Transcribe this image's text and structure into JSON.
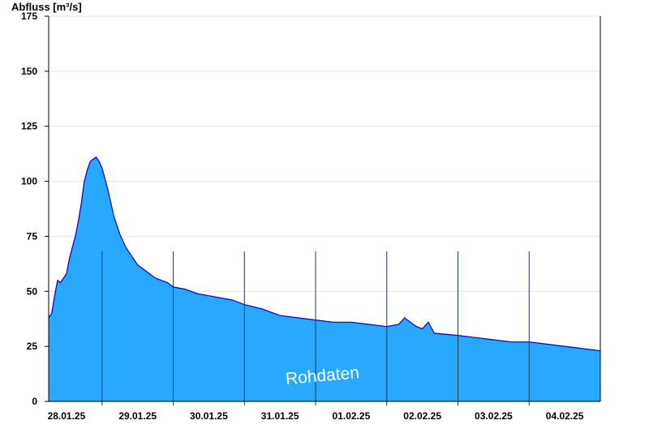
{
  "chart_data": {
    "type": "area",
    "ylabel": "Abfluss [m³/s]",
    "title": "",
    "xlabel": "",
    "ylim": [
      0,
      175
    ],
    "yticks": [
      0,
      25,
      50,
      75,
      100,
      125,
      150,
      175
    ],
    "x_range": [
      "2025-01-27T18:00",
      "2025-02-04T12:00"
    ],
    "xtick_labels": [
      "28.01.25",
      "29.01.25",
      "30.01.25",
      "31.01.25",
      "01.02.25",
      "02.02.25",
      "03.02.25",
      "04.02.25"
    ],
    "day_boundaries": [
      "2025-01-28T12:00",
      "2025-01-29T12:00",
      "2025-01-30T12:00",
      "2025-01-31T12:00",
      "2025-02-01T12:00",
      "2025-02-02T12:00",
      "2025-02-03T12:00"
    ],
    "grid": "horizontal",
    "watermark": "Rohdaten",
    "fill_color": "#29a8ff",
    "line_color": "#0000cc",
    "series": [
      {
        "values": [
          [
            "2025-01-27T18:00",
            38
          ],
          [
            "2025-01-27T19:00",
            40
          ],
          [
            "2025-01-27T20:00",
            48
          ],
          [
            "2025-01-27T21:00",
            55
          ],
          [
            "2025-01-27T22:00",
            54
          ],
          [
            "2025-01-27T23:00",
            56
          ],
          [
            "2025-01-28T00:00",
            58
          ],
          [
            "2025-01-28T01:00",
            65
          ],
          [
            "2025-01-28T02:00",
            70
          ],
          [
            "2025-01-28T03:00",
            75
          ],
          [
            "2025-01-28T04:00",
            82
          ],
          [
            "2025-01-28T05:00",
            90
          ],
          [
            "2025-01-28T06:00",
            100
          ],
          [
            "2025-01-28T07:00",
            105
          ],
          [
            "2025-01-28T08:00",
            109
          ],
          [
            "2025-01-28T09:00",
            110
          ],
          [
            "2025-01-28T10:00",
            111
          ],
          [
            "2025-01-28T11:00",
            109
          ],
          [
            "2025-01-28T12:00",
            106
          ],
          [
            "2025-01-28T13:00",
            101
          ],
          [
            "2025-01-28T14:00",
            96
          ],
          [
            "2025-01-28T15:00",
            90
          ],
          [
            "2025-01-28T16:00",
            84
          ],
          [
            "2025-01-28T17:00",
            80
          ],
          [
            "2025-01-28T18:00",
            76
          ],
          [
            "2025-01-28T20:00",
            70
          ],
          [
            "2025-01-28T22:00",
            66
          ],
          [
            "2025-01-29T00:00",
            62
          ],
          [
            "2025-01-29T02:00",
            60
          ],
          [
            "2025-01-29T04:00",
            58
          ],
          [
            "2025-01-29T06:00",
            56
          ],
          [
            "2025-01-29T08:00",
            55
          ],
          [
            "2025-01-29T10:00",
            54
          ],
          [
            "2025-01-29T12:00",
            52
          ],
          [
            "2025-01-29T16:00",
            51
          ],
          [
            "2025-01-29T20:00",
            49
          ],
          [
            "2025-01-30T00:00",
            48
          ],
          [
            "2025-01-30T04:00",
            47
          ],
          [
            "2025-01-30T08:00",
            46
          ],
          [
            "2025-01-30T12:00",
            44
          ],
          [
            "2025-01-30T18:00",
            42
          ],
          [
            "2025-01-31T00:00",
            39
          ],
          [
            "2025-01-31T06:00",
            38
          ],
          [
            "2025-01-31T12:00",
            37
          ],
          [
            "2025-01-31T18:00",
            36
          ],
          [
            "2025-02-01T00:00",
            36
          ],
          [
            "2025-02-01T06:00",
            35
          ],
          [
            "2025-02-01T12:00",
            34
          ],
          [
            "2025-02-01T16:00",
            35
          ],
          [
            "2025-02-01T18:00",
            38
          ],
          [
            "2025-02-01T20:00",
            36
          ],
          [
            "2025-02-01T22:00",
            34
          ],
          [
            "2025-02-02T00:00",
            33
          ],
          [
            "2025-02-02T02:00",
            36
          ],
          [
            "2025-02-02T04:00",
            31
          ],
          [
            "2025-02-02T12:00",
            30
          ],
          [
            "2025-02-02T18:00",
            29
          ],
          [
            "2025-02-03T00:00",
            28
          ],
          [
            "2025-02-03T06:00",
            27
          ],
          [
            "2025-02-03T12:00",
            27
          ],
          [
            "2025-02-03T18:00",
            26
          ],
          [
            "2025-02-04T00:00",
            25
          ],
          [
            "2025-02-04T06:00",
            24
          ],
          [
            "2025-02-04T12:00",
            23
          ]
        ]
      }
    ]
  }
}
